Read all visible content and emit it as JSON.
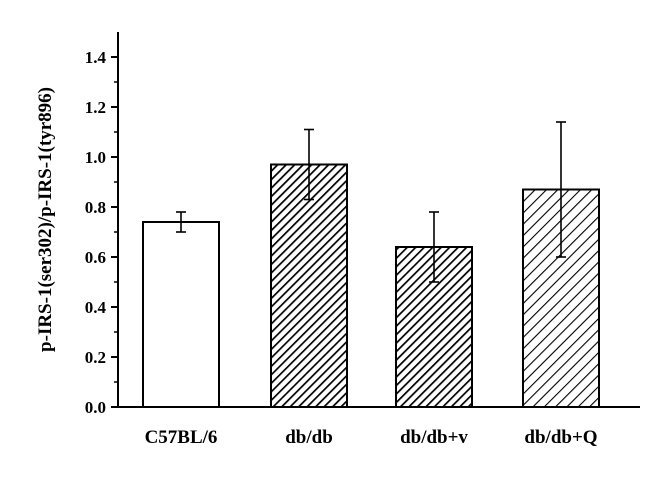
{
  "chart_data": {
    "type": "bar",
    "title": "",
    "xlabel": "",
    "ylabel": "p-IRS-1(ser302)/p-IRS-1(tyr896)",
    "ylim": [
      0,
      1.5
    ],
    "yticks": [
      "0.0",
      "0.2",
      "0.4",
      "0.6",
      "0.8",
      "1.0",
      "1.2",
      "1.4"
    ],
    "grid": false,
    "categories": [
      "C57BL/6",
      "db/db",
      "db/db+v",
      "db/db+Q"
    ],
    "values": [
      0.74,
      0.97,
      0.64,
      0.87
    ],
    "error_low": [
      0.7,
      0.83,
      0.5,
      0.6
    ],
    "error_high": [
      0.78,
      1.11,
      0.78,
      1.14
    ],
    "fills": [
      "open",
      "dense-hatch",
      "dense-hatch",
      "sparse-hatch"
    ],
    "colors": {
      "bar_stroke": "#000000",
      "axis": "#000000",
      "background": "#ffffff"
    }
  }
}
